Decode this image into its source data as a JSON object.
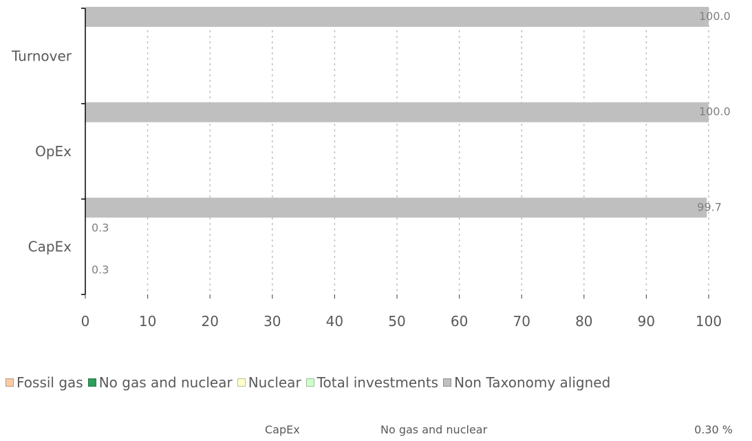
{
  "chart_data": {
    "type": "bar",
    "orientation": "horizontal",
    "stacked": true,
    "categories": [
      "Turnover",
      "OpEx",
      "CapEx"
    ],
    "xlim": [
      0,
      100
    ],
    "xticks": [
      0,
      10,
      20,
      30,
      40,
      50,
      60,
      70,
      80,
      90,
      100
    ],
    "grid": "vertical-dashed",
    "legend_position": "bottom",
    "bar_rows": [
      {
        "category": "Turnover",
        "bars": [
          {
            "segments": [
              {
                "series": "Non Taxonomy aligned",
                "value": 100.0,
                "label": "100.0"
              }
            ]
          }
        ],
        "labels": []
      },
      {
        "category": "OpEx",
        "bars": [
          {
            "segments": [
              {
                "series": "Non Taxonomy aligned",
                "value": 100.0,
                "label": "100.0"
              }
            ]
          }
        ],
        "labels": []
      },
      {
        "category": "CapEx",
        "bars": [
          {
            "segments": [
              {
                "series": "Non Taxonomy aligned",
                "value": 99.7,
                "label": "99.7"
              }
            ]
          }
        ],
        "labels": [
          "0.3",
          "0.3"
        ]
      }
    ],
    "series": [
      {
        "name": "Fossil gas",
        "color": "#f8cba6"
      },
      {
        "name": "No gas and nuclear",
        "color": "#2e9e5b"
      },
      {
        "name": "Nuclear",
        "color": "#ffffcc"
      },
      {
        "name": "Total investments",
        "color": "#ccffcc"
      },
      {
        "name": "Non Taxonomy aligned",
        "color": "#bfbfbf"
      }
    ]
  },
  "tooltip": {
    "category": "CapEx",
    "series": "No gas and nuclear",
    "value": "0.30",
    "unit": "%"
  }
}
